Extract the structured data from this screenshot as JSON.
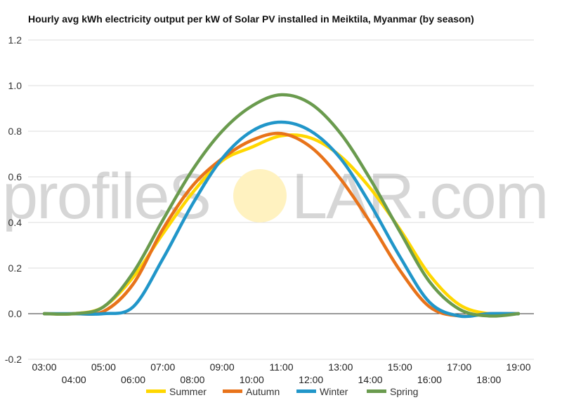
{
  "chart_data": {
    "type": "line",
    "title": "Hourly avg kWh electricity output per kW of Solar PV installed in Meiktila, Myanmar (by season)",
    "xlabel": "",
    "ylabel": "",
    "ylim": [
      -0.2,
      1.2
    ],
    "yticks": [
      "-0.2",
      "0.0",
      "0.2",
      "0.4",
      "0.6",
      "0.8",
      "1.0",
      "1.2"
    ],
    "ytick_values": [
      -0.2,
      0.0,
      0.2,
      0.4,
      0.6,
      0.8,
      1.0,
      1.2
    ],
    "x": [
      "03:00",
      "04:00",
      "05:00",
      "06:00",
      "07:00",
      "08:00",
      "09:00",
      "10:00",
      "11:00",
      "12:00",
      "13:00",
      "14:00",
      "15:00",
      "16:00",
      "17:00",
      "18:00",
      "19:00"
    ],
    "grid": true,
    "legend_position": "bottom",
    "series": [
      {
        "name": "Summer",
        "color": "#ffd700",
        "values": [
          0.0,
          0.0,
          0.03,
          0.16,
          0.35,
          0.53,
          0.67,
          0.73,
          0.78,
          0.77,
          0.69,
          0.55,
          0.37,
          0.17,
          0.04,
          0.0,
          0.0
        ]
      },
      {
        "name": "Autumn",
        "color": "#e8731a",
        "values": [
          0.0,
          0.0,
          0.01,
          0.13,
          0.37,
          0.56,
          0.68,
          0.76,
          0.79,
          0.73,
          0.59,
          0.4,
          0.19,
          0.03,
          -0.01,
          0.0,
          0.0
        ]
      },
      {
        "name": "Winter",
        "color": "#2196c9",
        "values": [
          0.0,
          0.0,
          0.0,
          0.03,
          0.24,
          0.48,
          0.68,
          0.8,
          0.84,
          0.8,
          0.68,
          0.48,
          0.25,
          0.05,
          -0.01,
          0.0,
          0.0
        ]
      },
      {
        "name": "Spring",
        "color": "#6a9b4e",
        "values": [
          0.0,
          0.0,
          0.03,
          0.18,
          0.41,
          0.63,
          0.8,
          0.91,
          0.96,
          0.92,
          0.79,
          0.59,
          0.36,
          0.14,
          0.02,
          -0.01,
          0.0
        ]
      }
    ]
  },
  "watermark": {
    "left": "profileS",
    "right": "LAR.com",
    "sun_color": "#fff2c0"
  }
}
